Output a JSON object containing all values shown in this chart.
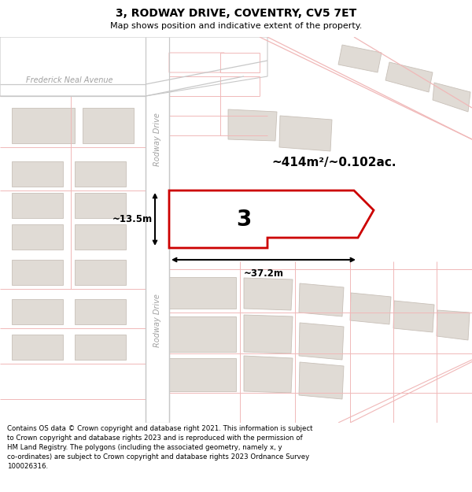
{
  "title": "3, RODWAY DRIVE, COVENTRY, CV5 7ET",
  "subtitle": "Map shows position and indicative extent of the property.",
  "footer_line1": "Contains OS data © Crown copyright and database right 2021. This information is subject",
  "footer_line2": "to Crown copyright and database rights 2023 and is reproduced with the permission of",
  "footer_line3": "HM Land Registry. The polygons (including the associated geometry, namely x, y",
  "footer_line4": "co-ordinates) are subject to Crown copyright and database rights 2023 Ordnance Survey",
  "footer_line5": "100026316.",
  "map_bg": "#ffffff",
  "road_color": "#f0b8b8",
  "road_gray": "#c8c8c8",
  "building_color": "#e0dbd5",
  "building_edge": "#c8c0b8",
  "highlight_color": "#cc0000",
  "street_label_color": "#a0a0a0",
  "area_label": "~414m²/~0.102ac.",
  "property_label": "3",
  "dim_width": "~37.2m",
  "dim_height": "~13.5m"
}
